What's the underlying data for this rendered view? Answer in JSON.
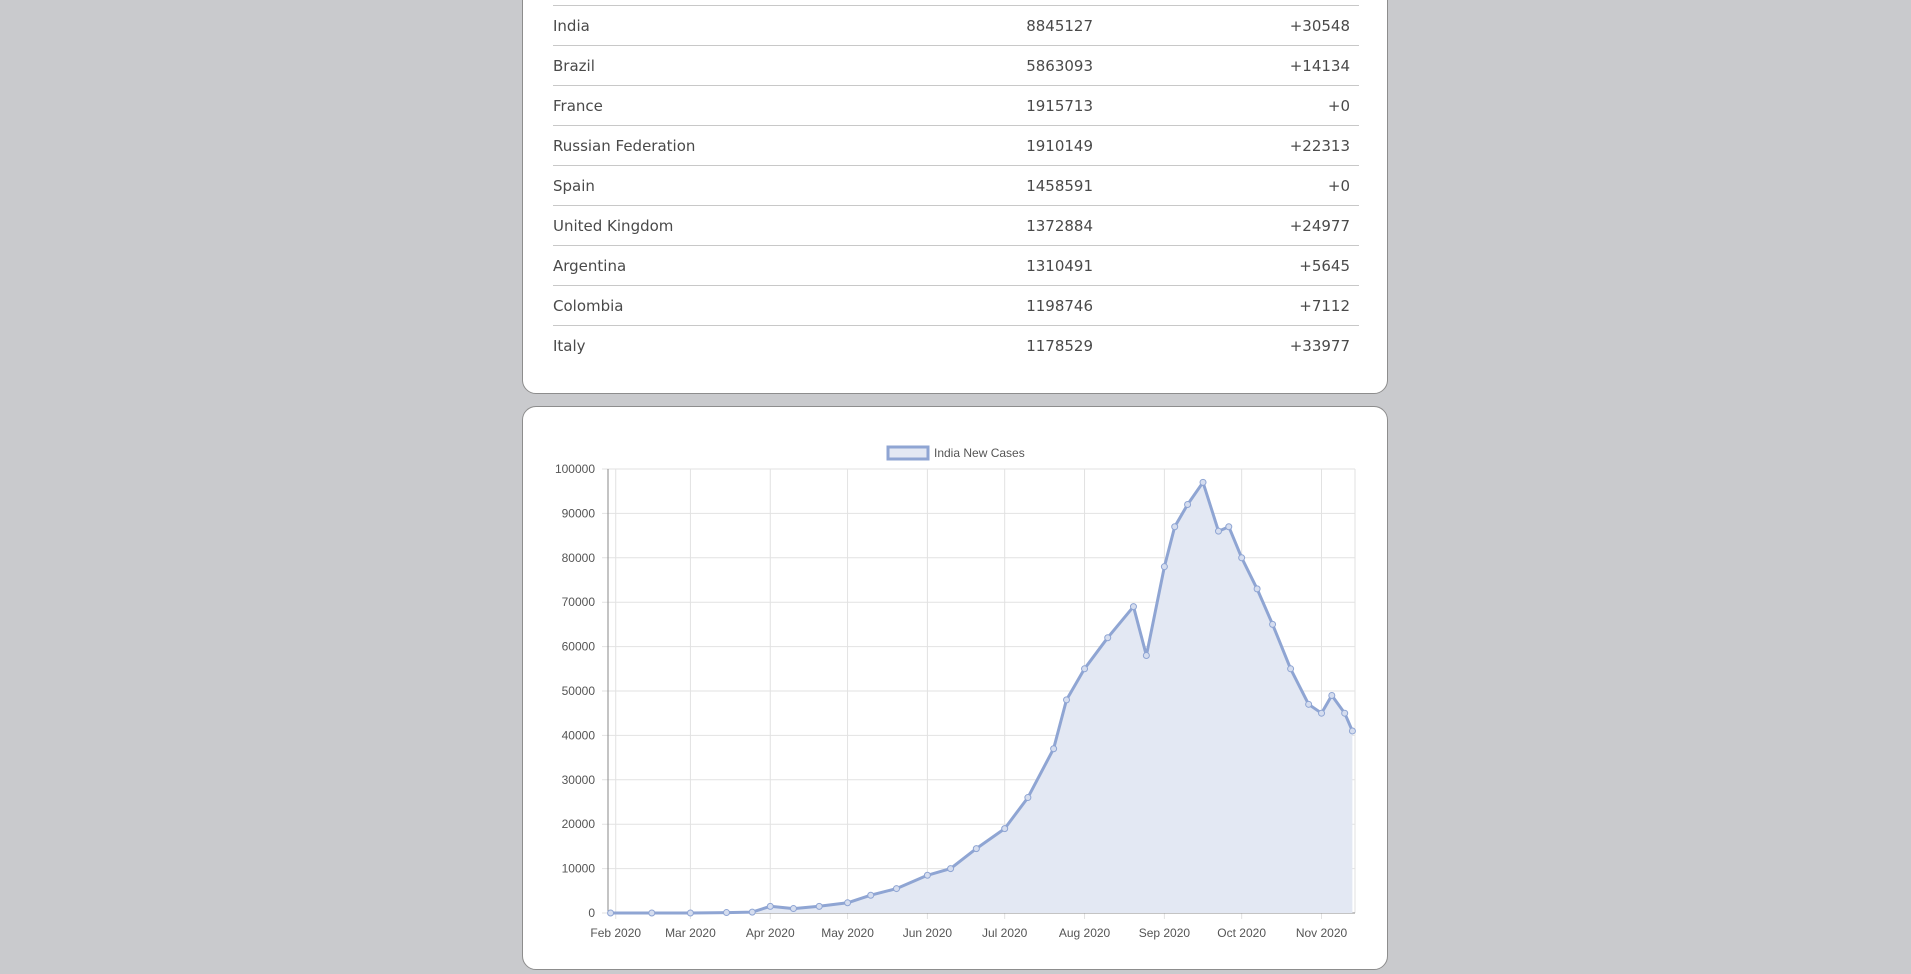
{
  "table": {
    "rows": [
      {
        "country": "India",
        "cases": "8845127",
        "new": "+30548"
      },
      {
        "country": "Brazil",
        "cases": "5863093",
        "new": "+14134"
      },
      {
        "country": "France",
        "cases": "1915713",
        "new": "+0"
      },
      {
        "country": "Russian Federation",
        "cases": "1910149",
        "new": "+22313"
      },
      {
        "country": "Spain",
        "cases": "1458591",
        "new": "+0"
      },
      {
        "country": "United Kingdom",
        "cases": "1372884",
        "new": "+24977"
      },
      {
        "country": "Argentina",
        "cases": "1310491",
        "new": "+5645"
      },
      {
        "country": "Colombia",
        "cases": "1198746",
        "new": "+7112"
      },
      {
        "country": "Italy",
        "cases": "1178529",
        "new": "+33977"
      }
    ]
  },
  "chart_data": {
    "type": "area",
    "series": [
      {
        "name": "India New Cases",
        "x": [
          "2020-01-30",
          "2020-02-15",
          "2020-03-01",
          "2020-03-15",
          "2020-03-25",
          "2020-04-01",
          "2020-04-10",
          "2020-04-20",
          "2020-05-01",
          "2020-05-10",
          "2020-05-20",
          "2020-06-01",
          "2020-06-10",
          "2020-06-20",
          "2020-07-01",
          "2020-07-10",
          "2020-07-20",
          "2020-07-25",
          "2020-08-01",
          "2020-08-10",
          "2020-08-20",
          "2020-08-25",
          "2020-09-01",
          "2020-09-05",
          "2020-09-10",
          "2020-09-16",
          "2020-09-22",
          "2020-09-26",
          "2020-10-01",
          "2020-10-07",
          "2020-10-13",
          "2020-10-20",
          "2020-10-27",
          "2020-11-01",
          "2020-11-05",
          "2020-11-10",
          "2020-11-13"
        ],
        "y": [
          0,
          0,
          0,
          100,
          200,
          1500,
          1000,
          1500,
          2300,
          4000,
          5500,
          8500,
          10000,
          14500,
          19000,
          26000,
          37000,
          48000,
          55000,
          62000,
          69000,
          58000,
          78000,
          87000,
          92000,
          97000,
          86000,
          87000,
          80000,
          73000,
          65000,
          55000,
          47000,
          45000,
          49000,
          45000,
          41000
        ]
      }
    ],
    "xlabels": [
      "Feb 2020",
      "Mar 2020",
      "Apr 2020",
      "May 2020",
      "Jun 2020",
      "Jul 2020",
      "Aug 2020",
      "Sep 2020",
      "Oct 2020",
      "Nov 2020"
    ],
    "ylabels": [
      "100000",
      "90000",
      "80000",
      "70000",
      "60000",
      "50000",
      "40000",
      "30000",
      "20000",
      "10000",
      "0"
    ],
    "ylim": [
      0,
      100000
    ],
    "grid": true,
    "legend": "top",
    "colors": {
      "line": "#8fa5d3",
      "fill": "#e3e8f3",
      "grid": "#e2e2e2",
      "axis": "#8a8a8a"
    }
  }
}
